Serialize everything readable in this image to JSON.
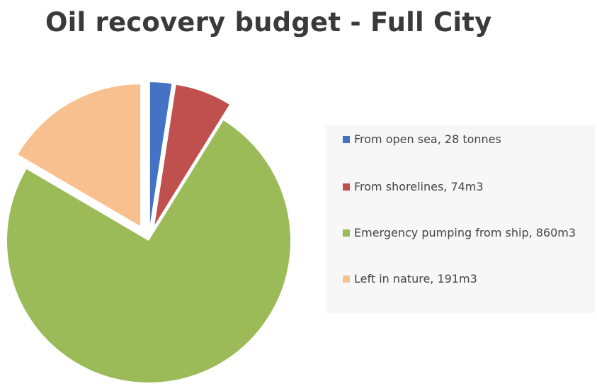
{
  "chart_data": {
    "type": "pie",
    "title": "Oil recovery budget - Full City",
    "slices": [
      {
        "label": "From open sea, 28 tonnes",
        "value": 28,
        "color": "#4472c4"
      },
      {
        "label": "From shorelines, 74m3",
        "value": 74,
        "color": "#c0504d"
      },
      {
        "label": "Emergency pumping from ship, 860m3",
        "value": 860,
        "color": "#9bbb59"
      },
      {
        "label": "Left in nature, 191m3",
        "value": 191,
        "color": "#f9c08f"
      }
    ],
    "exploded": [
      true,
      true,
      false,
      true
    ],
    "legend_position": "right"
  }
}
